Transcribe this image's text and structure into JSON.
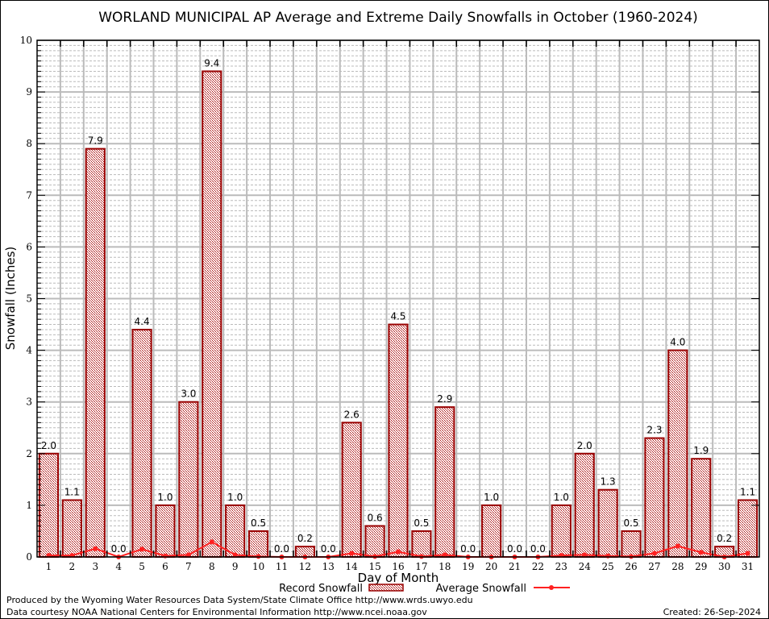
{
  "chart_data": {
    "type": "bar",
    "title": "WORLAND MUNICIPAL AP Average and Extreme Daily Snowfalls in October (1960-2024)",
    "xlabel": "Day of Month",
    "ylabel": "Snowfall (Inches)",
    "ylim": [
      0,
      10
    ],
    "yticks": [
      "0",
      "1",
      "2",
      "3",
      "4",
      "5",
      "6",
      "7",
      "8",
      "9",
      "10"
    ],
    "grid": true,
    "legend_placement": "bottom",
    "categories": [
      "1",
      "2",
      "3",
      "4",
      "5",
      "6",
      "7",
      "8",
      "9",
      "10",
      "11",
      "12",
      "13",
      "14",
      "15",
      "16",
      "17",
      "18",
      "19",
      "20",
      "21",
      "22",
      "23",
      "24",
      "25",
      "26",
      "27",
      "28",
      "29",
      "30",
      "31"
    ],
    "series": [
      {
        "name": "Record Snowfall",
        "type": "bar",
        "color": "#990000",
        "values": [
          2.0,
          1.1,
          7.9,
          0.0,
          4.4,
          1.0,
          3.0,
          9.4,
          1.0,
          0.5,
          0.0,
          0.2,
          0.0,
          2.6,
          0.6,
          4.5,
          0.5,
          2.9,
          0.0,
          1.0,
          0.0,
          0.0,
          1.0,
          2.0,
          1.3,
          0.5,
          2.3,
          4.0,
          1.9,
          0.2,
          1.1
        ],
        "labels": [
          "2.0",
          "1.1",
          "7.9",
          "0.0",
          "4.4",
          "1.0",
          "3.0",
          "9.4",
          "1.0",
          "0.5",
          "0.0",
          "0.2",
          "0.0",
          "2.6",
          "0.6",
          "4.5",
          "0.5",
          "2.9",
          "0.0",
          "1.0",
          "0.0",
          "0.0",
          "1.0",
          "2.0",
          "1.3",
          "0.5",
          "2.3",
          "4.0",
          "1.9",
          "0.2",
          "1.1"
        ]
      },
      {
        "name": "Average Snowfall",
        "type": "line",
        "color": "#ff2020",
        "values": [
          0.03,
          0.03,
          0.16,
          0.0,
          0.15,
          0.02,
          0.04,
          0.29,
          0.04,
          0.01,
          0.0,
          0.0,
          0.0,
          0.07,
          0.01,
          0.1,
          0.01,
          0.04,
          0.0,
          0.0,
          0.0,
          0.0,
          0.03,
          0.04,
          0.02,
          0.01,
          0.07,
          0.21,
          0.09,
          0.0,
          0.07
        ]
      }
    ]
  },
  "footer": {
    "credit1": "Produced by the Wyoming Water Resources Data System/State Climate Office http://www.wrds.uwyo.edu",
    "credit2": "Data courtesy NOAA National Centers for Environmental Information http://www.ncei.noaa.gov",
    "created": "Created: 26-Sep-2024"
  }
}
